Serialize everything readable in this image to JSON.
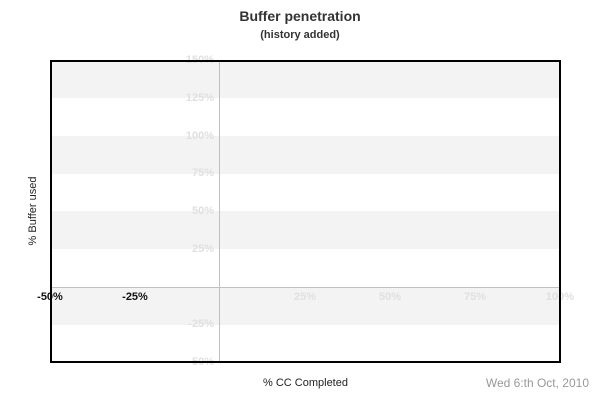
{
  "header": {
    "title": "Buffer penetration",
    "subtitle": "(history added)"
  },
  "footer": {
    "date": "Wed 6:th Oct, 2010"
  },
  "chart_data": {
    "type": "line",
    "title": "Buffer penetration",
    "subtitle": "(history added)",
    "xlabel": "% CC Completed",
    "ylabel": "% Buffer used",
    "xlim": [
      -50,
      100
    ],
    "ylim": [
      -50,
      150
    ],
    "x_ticks": [
      {
        "value": -50,
        "label": "-50%",
        "emphasis": "dark"
      },
      {
        "value": -25,
        "label": "-25%",
        "emphasis": "dark"
      },
      {
        "value": 25,
        "label": "25%",
        "emphasis": "light"
      },
      {
        "value": 50,
        "label": "50%",
        "emphasis": "light"
      },
      {
        "value": 75,
        "label": "75%",
        "emphasis": "light"
      },
      {
        "value": 100,
        "label": "100%",
        "emphasis": "light"
      }
    ],
    "y_ticks": [
      {
        "value": 150,
        "label": "150%"
      },
      {
        "value": 125,
        "label": "125%"
      },
      {
        "value": 100,
        "label": "100%"
      },
      {
        "value": 75,
        "label": "75%"
      },
      {
        "value": 50,
        "label": "50%"
      },
      {
        "value": 25,
        "label": "25%"
      },
      {
        "value": -25,
        "label": "-25%"
      },
      {
        "value": -50,
        "label": "-50%"
      }
    ],
    "zero_lines": {
      "x": 0,
      "y": 0
    },
    "bands": [
      {
        "y_from": 150,
        "y_to": 125
      },
      {
        "y_from": 100,
        "y_to": 75
      },
      {
        "y_from": 50,
        "y_to": 25
      },
      {
        "y_from": 0,
        "y_to": -25
      }
    ],
    "series": [],
    "legend": "none",
    "colors": {
      "band": "#f3f3f3",
      "zero_line": "#c0c0c0",
      "tick_light": "#e0e0e0",
      "tick_dark": "#111111",
      "plot_border": "#000000",
      "title_text": "#333333",
      "axis_title_text": "#222222",
      "date_text": "#999999",
      "background": "#ffffff"
    }
  }
}
